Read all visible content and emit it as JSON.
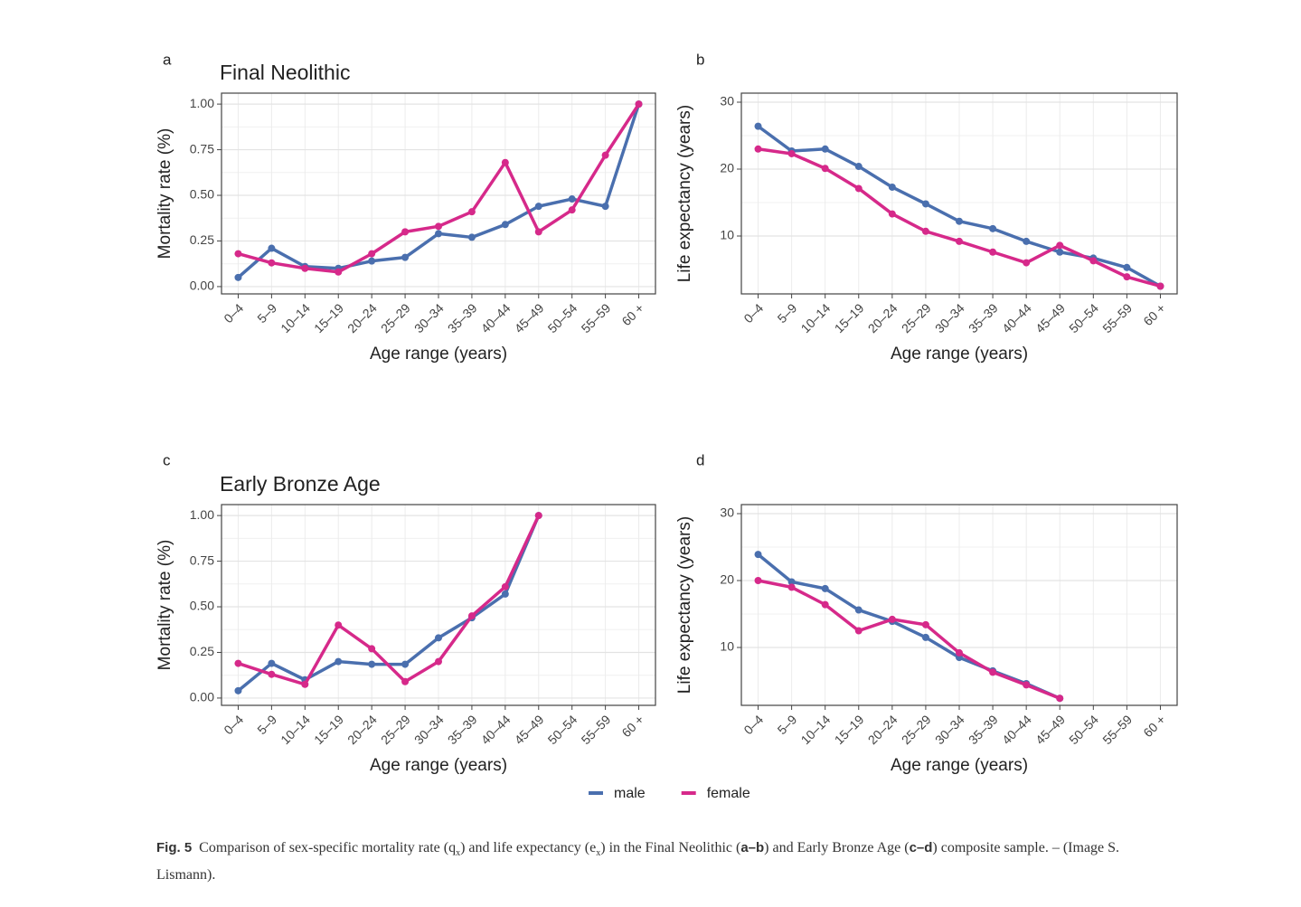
{
  "chart_data": [
    {
      "type": "line",
      "panel": "a",
      "title": "Final Neolithic",
      "x_label": "Age range (years)",
      "y_label": "Mortality rate (%)",
      "categories": [
        "0–4",
        "5–9",
        "10–14",
        "15–19",
        "20–24",
        "25–29",
        "30–34",
        "35–39",
        "40–44",
        "45–49",
        "50–54",
        "55–59",
        "60 +"
      ],
      "ylim": [
        -0.04,
        1.06
      ],
      "yticks": [
        {
          "value": 0,
          "label": "0.00"
        },
        0.25,
        {
          "value": 0.5,
          "label": "0.50"
        },
        0.75,
        {
          "value": 1,
          "label": "1.00"
        }
      ],
      "grid": true,
      "series": [
        {
          "name": "male",
          "color": "#4a6fae",
          "values": [
            0.05,
            0.21,
            0.11,
            0.1,
            0.14,
            0.16,
            0.29,
            0.27,
            0.34,
            0.44,
            0.48,
            0.44,
            1.0
          ]
        },
        {
          "name": "female",
          "color": "#d6298a",
          "values": [
            0.18,
            0.13,
            0.1,
            0.08,
            0.18,
            0.3,
            0.33,
            0.41,
            0.68,
            0.3,
            0.42,
            0.72,
            1.0
          ]
        }
      ]
    },
    {
      "type": "line",
      "panel": "b",
      "x_label": "Age range (years)",
      "y_label": "Life expectancy (years)",
      "categories": [
        "0–4",
        "5–9",
        "10–14",
        "15–19",
        "20–24",
        "25–29",
        "30–34",
        "35–39",
        "40–44",
        "45–49",
        "50–54",
        "55–59",
        "60 +"
      ],
      "ylim": [
        1.35,
        31.35
      ],
      "yticks": [
        10,
        20,
        30
      ],
      "grid": true,
      "series": [
        {
          "name": "male",
          "color": "#4a6fae",
          "values": [
            26.4,
            22.7,
            23.0,
            20.4,
            17.3,
            14.8,
            12.2,
            11.1,
            9.2,
            7.6,
            6.7,
            5.3,
            2.5
          ]
        },
        {
          "name": "female",
          "color": "#d6298a",
          "values": [
            23.0,
            22.3,
            20.1,
            17.1,
            13.3,
            10.7,
            9.2,
            7.6,
            6.0,
            8.6,
            6.3,
            3.9,
            2.5
          ]
        }
      ]
    },
    {
      "type": "line",
      "panel": "c",
      "title": "Early Bronze Age",
      "x_label": "Age range (years)",
      "y_label": "Mortality rate (%)",
      "categories": [
        "0–4",
        "5–9",
        "10–14",
        "15–19",
        "20–24",
        "25–29",
        "30–34",
        "35–39",
        "40–44",
        "45–49",
        "50–54",
        "55–59",
        "60 +"
      ],
      "ylim": [
        -0.04,
        1.06
      ],
      "yticks": [
        {
          "value": 0,
          "label": "0.00"
        },
        0.25,
        {
          "value": 0.5,
          "label": "0.50"
        },
        0.75,
        {
          "value": 1,
          "label": "1.00"
        }
      ],
      "grid": true,
      "series": [
        {
          "name": "male",
          "color": "#4a6fae",
          "values": [
            0.04,
            0.19,
            0.1,
            0.2,
            0.185,
            0.185,
            0.33,
            0.44,
            0.57,
            1.0,
            null,
            null,
            null
          ]
        },
        {
          "name": "female",
          "color": "#d6298a",
          "values": [
            0.19,
            0.13,
            0.075,
            0.4,
            0.27,
            0.09,
            0.2,
            0.45,
            0.61,
            1.0,
            null,
            null,
            null
          ]
        }
      ]
    },
    {
      "type": "line",
      "panel": "d",
      "x_label": "Age range (years)",
      "y_label": "Life expectancy (years)",
      "categories": [
        "0–4",
        "5–9",
        "10–14",
        "15–19",
        "20–24",
        "25–29",
        "30–34",
        "35–39",
        "40–44",
        "45–49",
        "50–54",
        "55–59",
        "60 +"
      ],
      "ylim": [
        1.35,
        31.35
      ],
      "yticks": [
        10,
        20,
        30
      ],
      "grid": true,
      "series": [
        {
          "name": "male",
          "color": "#4a6fae",
          "values": [
            23.9,
            19.8,
            18.8,
            15.6,
            13.9,
            11.5,
            8.5,
            6.5,
            4.6,
            2.4,
            null,
            null,
            null
          ]
        },
        {
          "name": "female",
          "color": "#d6298a",
          "values": [
            20.0,
            19.0,
            16.4,
            12.5,
            14.2,
            13.4,
            9.2,
            6.3,
            4.4,
            2.4,
            null,
            null,
            null
          ]
        }
      ]
    }
  ],
  "caption": {
    "label": "Fig. 5",
    "parts": [
      "Comparison of sex-specific mortality rate (q",
      "x",
      ") and life expectancy (e",
      "x",
      ") in the Final Neolithic (",
      "a–b",
      ") and Early Bronze Age (",
      "c–d",
      ") composite sample. – (Image S. Lismann)."
    ]
  }
}
